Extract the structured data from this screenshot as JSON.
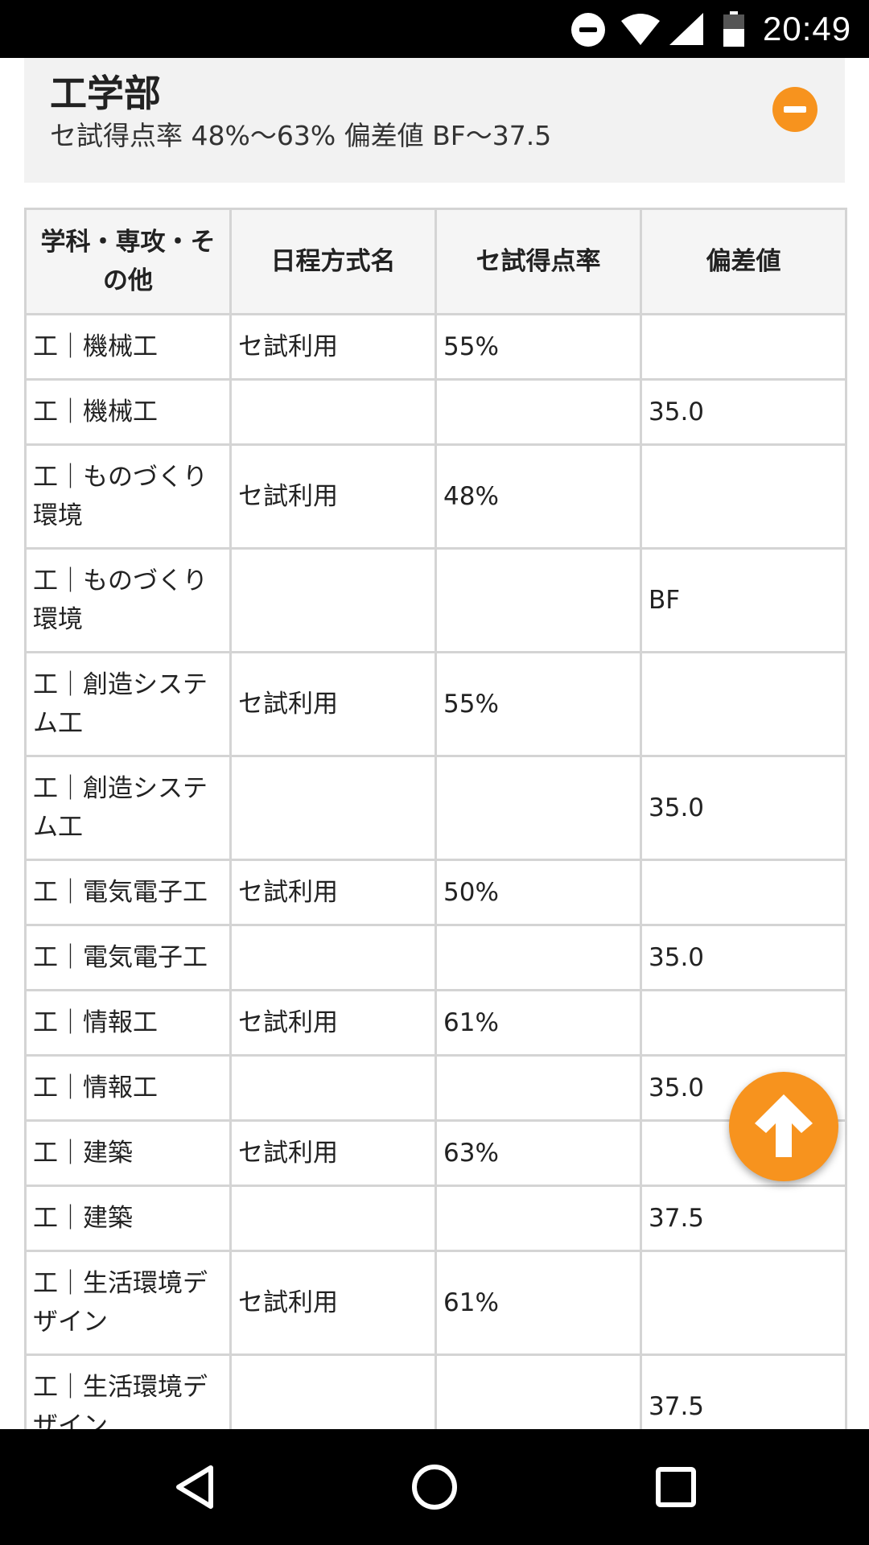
{
  "status_bar": {
    "time": "20:49",
    "icons": [
      "do-not-disturb-icon",
      "wifi-icon",
      "signal-icon",
      "battery-icon"
    ]
  },
  "faculty": {
    "title": "工学部",
    "summary": "セ試得点率 48%〜63% 偏差値 BF〜37.5",
    "collapse_icon": "minus-circle-icon"
  },
  "table": {
    "headers": [
      "学科・専攻・その他",
      "日程方式名",
      "セ試得点率",
      "偏差値"
    ],
    "rows": [
      {
        "dept": "工｜機械工",
        "method": "セ試利用",
        "rate": "55%",
        "dev": ""
      },
      {
        "dept": "工｜機械工",
        "method": "",
        "rate": "",
        "dev": "35.0"
      },
      {
        "dept": "工｜ものづくり環境",
        "method": "セ試利用",
        "rate": "48%",
        "dev": ""
      },
      {
        "dept": "工｜ものづくり環境",
        "method": "",
        "rate": "",
        "dev": "BF"
      },
      {
        "dept": "工｜創造システム工",
        "method": "セ試利用",
        "rate": "55%",
        "dev": ""
      },
      {
        "dept": "工｜創造システム工",
        "method": "",
        "rate": "",
        "dev": "35.0"
      },
      {
        "dept": "工｜電気電子工",
        "method": "セ試利用",
        "rate": "50%",
        "dev": ""
      },
      {
        "dept": "工｜電気電子工",
        "method": "",
        "rate": "",
        "dev": "35.0"
      },
      {
        "dept": "工｜情報工",
        "method": "セ試利用",
        "rate": "61%",
        "dev": ""
      },
      {
        "dept": "工｜情報工",
        "method": "",
        "rate": "",
        "dev": "35.0"
      },
      {
        "dept": "工｜建築",
        "method": "セ試利用",
        "rate": "63%",
        "dev": ""
      },
      {
        "dept": "工｜建築",
        "method": "",
        "rate": "",
        "dev": "37.5"
      },
      {
        "dept": "工｜生活環境デザイン",
        "method": "セ試利用",
        "rate": "61%",
        "dev": ""
      },
      {
        "dept": "工｜生活環境デザイン",
        "method": "",
        "rate": "",
        "dev": "37.5"
      }
    ]
  },
  "fab": {
    "icon": "arrow-up-icon"
  },
  "nav_bar": {
    "buttons": [
      "back-icon",
      "home-icon",
      "recents-icon"
    ]
  },
  "colors": {
    "accent": "#f7931e",
    "header_bg": "#f2f2f2",
    "border": "#d4d4d4"
  }
}
